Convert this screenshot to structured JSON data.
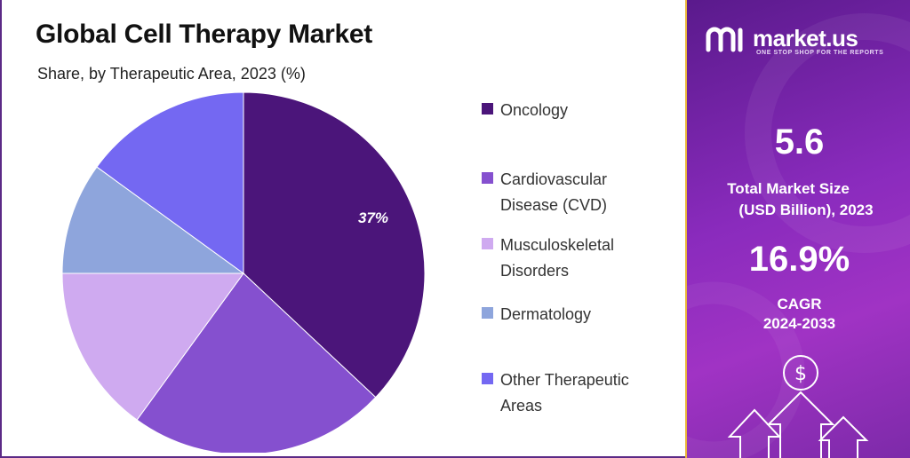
{
  "title": "Global Cell Therapy Market",
  "subtitle": "Share, by Therapeutic Area, 2023 (%)",
  "chart_data": {
    "type": "pie",
    "categories": [
      "Oncology",
      "Cardiovascular Disease (CVD)",
      "Musculoskeletal Disorders",
      "Dermatology",
      "Other Therapeutic Areas"
    ],
    "values": [
      37,
      23,
      15,
      10,
      15
    ],
    "data_labels": [
      "37%",
      "",
      "",
      "",
      ""
    ],
    "colors": [
      "#4b157a",
      "#8550cf",
      "#cfaaf0",
      "#8ea5dc",
      "#7468f2"
    ],
    "legend_position": "right"
  },
  "brand": {
    "name": "market.us",
    "tagline": "ONE STOP SHOP FOR THE REPORTS"
  },
  "stats": {
    "market_size_value": "5.6",
    "market_size_label_1": "Total Market Size",
    "market_size_label_2": "(USD Billion), 2023",
    "cagr_value": "16.9%",
    "cagr_label_1": "CAGR",
    "cagr_label_2": "2024-2033"
  },
  "icons": [
    "dollar-icon",
    "growth-arrows-icon",
    "market-us-logo-icon"
  ]
}
